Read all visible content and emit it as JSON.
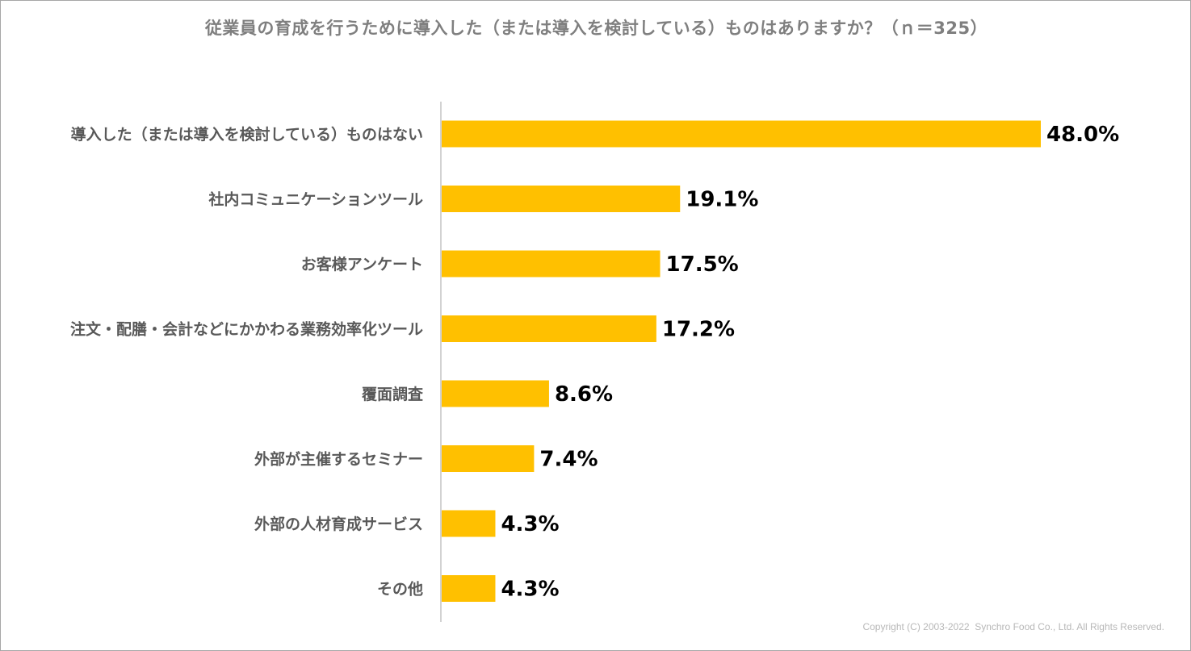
{
  "chart_data": {
    "type": "bar",
    "orientation": "horizontal",
    "title": "従業員の育成を行うために導入した（または導入を検討している）ものはありますか？（ｎ＝325）",
    "categories": [
      "導入した（または導入を検討している）ものはない",
      "社内コミュニケーションツール",
      "お客様アンケート",
      "注文・配膳・会計などにかかわる業務効率化ツール",
      "覆面調査",
      "外部が主催するセミナー",
      "外部の人材育成サービス",
      "その他"
    ],
    "values": [
      48.0,
      19.1,
      17.5,
      17.2,
      8.6,
      7.4,
      4.3,
      4.3
    ],
    "value_labels": [
      "48.0%",
      "19.1%",
      "17.5%",
      "17.2%",
      "8.6%",
      "7.4%",
      "4.3%",
      "4.3%"
    ],
    "unit": "%",
    "xlim": [
      0,
      50
    ],
    "xlabel": "",
    "ylabel": "",
    "grid": false,
    "legend": "none",
    "bar_color": "#ffc000"
  },
  "footer": {
    "copyright": "Copyright (C) 2003-2022  Synchro Food Co., Ltd. All Rights Reserved."
  }
}
